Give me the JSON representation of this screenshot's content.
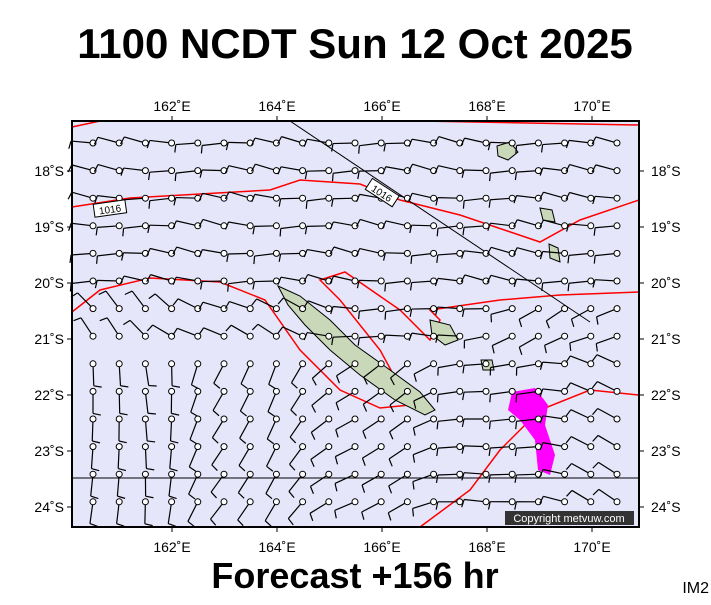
{
  "header": {
    "title": "1100 NCDT Sun 12 Oct 2025"
  },
  "map": {
    "lon_labels": [
      "162˚E",
      "164˚E",
      "166˚E",
      "168˚E",
      "170˚E"
    ],
    "lat_labels": [
      "18˚S",
      "19˚S",
      "20˚S",
      "21˚S",
      "22˚S",
      "23˚S",
      "24˚S"
    ],
    "contour_labels": [
      "1016",
      "1016"
    ],
    "copyright": "Copyright metvuw.com"
  },
  "footer": {
    "forecast": "Forecast +156 hr",
    "code": "IM2"
  }
}
